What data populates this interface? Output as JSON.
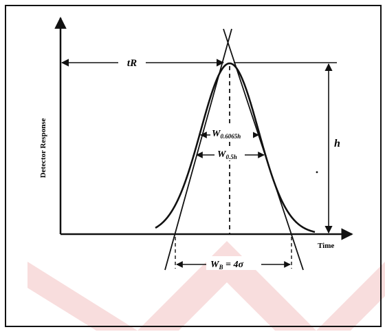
{
  "diagram": {
    "y_axis_label": "Detector Response",
    "x_axis_label": "Time",
    "retention_time_label": "tR",
    "height_label": "h",
    "width_0_6065h": {
      "main": "W",
      "sub": "0.6065h"
    },
    "width_0_5h": {
      "main": "W",
      "sub": "0.5h"
    },
    "width_base": {
      "main": "W",
      "sub": "B",
      "suffix": " = 4σ"
    }
  },
  "colors": {
    "ink": "#111111",
    "watermark": "#f3c9c9",
    "background": "#ffffff"
  }
}
